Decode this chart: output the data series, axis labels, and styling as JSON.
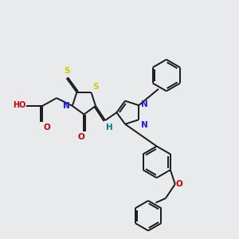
{
  "background_color": "#e8eaec",
  "fig_size": [
    3.0,
    3.0
  ],
  "dpi": 100,
  "atom_colors": {
    "C": "#000000",
    "N": "#1a1aff",
    "O": "#cc0000",
    "S": "#cccc00",
    "H": "#008080"
  },
  "line_color": "#1a1a1a",
  "line_width": 1.4,
  "dbo": 0.018,
  "fs": 7.5,
  "fsm": 6.5
}
